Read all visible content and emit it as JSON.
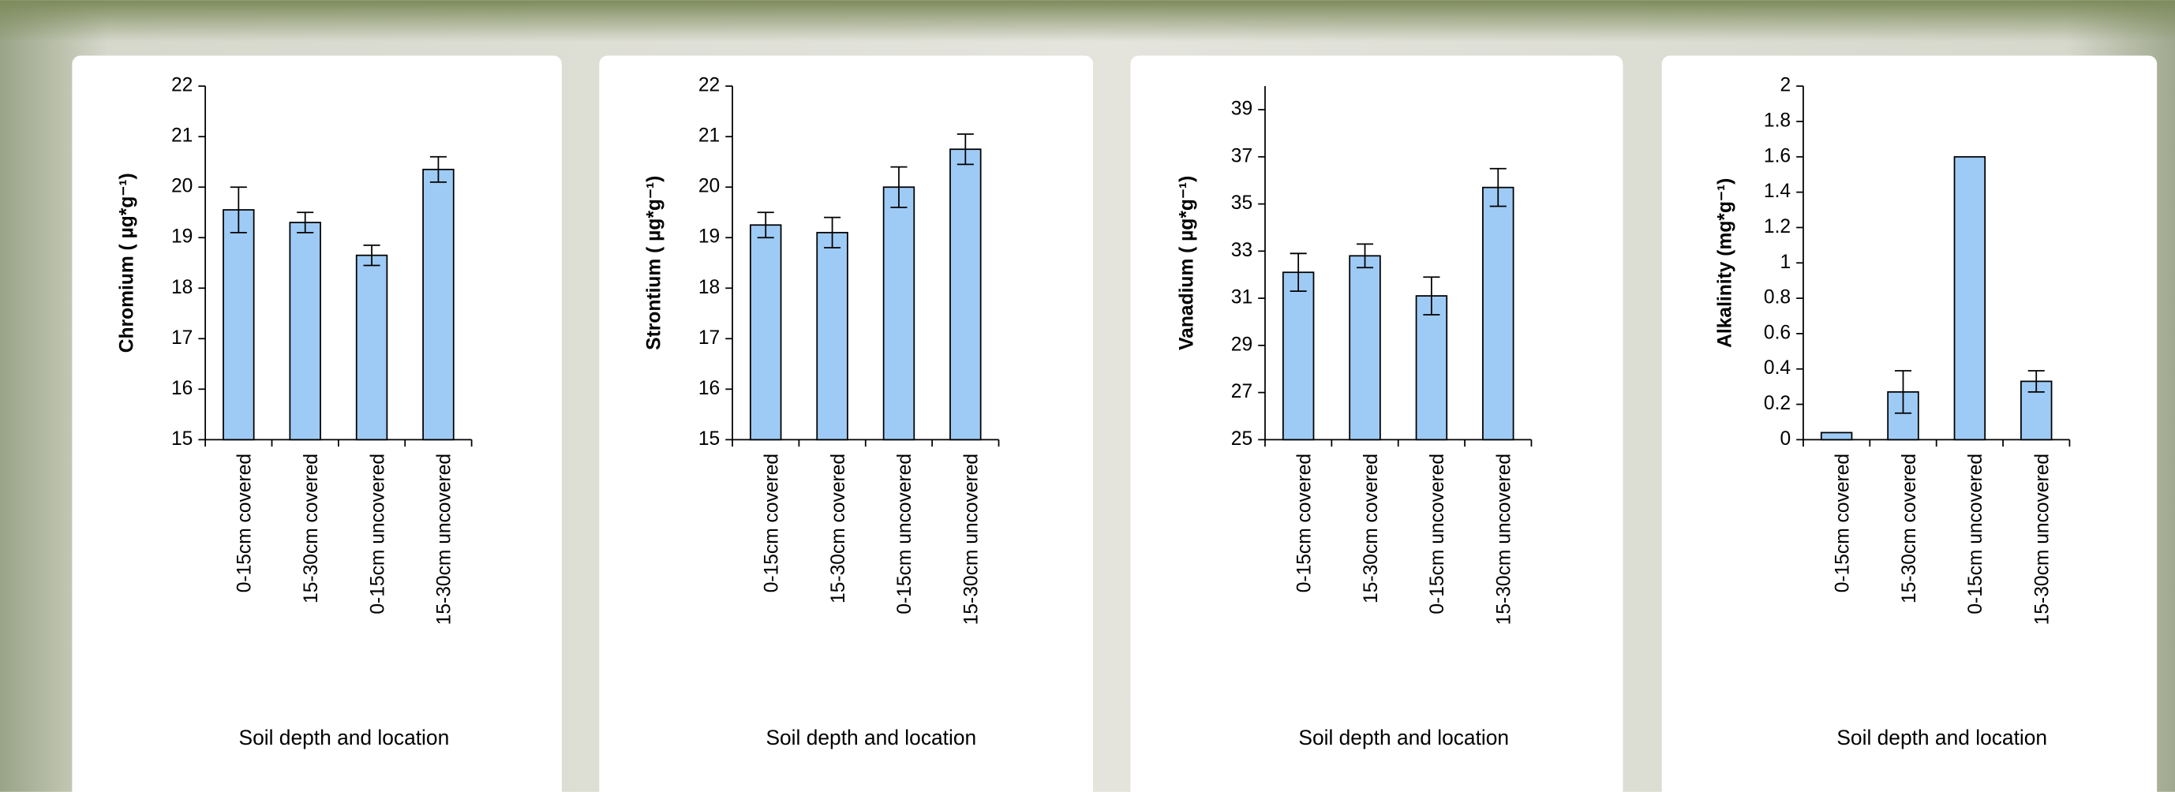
{
  "chart_data": [
    {
      "type": "bar",
      "ylabel": "Chromium ( µg*g⁻¹)",
      "xlabel": "Soil depth and location",
      "categories": [
        "0-15cm covered",
        "15-30cm covered",
        "0-15cm uncovered",
        "15-30cm uncovered"
      ],
      "values": [
        19.55,
        19.3,
        18.65,
        20.35
      ],
      "errors": [
        0.45,
        0.2,
        0.2,
        0.25
      ],
      "color": "#9ecbf5",
      "ylim": [
        15,
        22
      ],
      "yticks": [
        15,
        16,
        17,
        18,
        19,
        20,
        21,
        22
      ]
    },
    {
      "type": "bar",
      "ylabel": "Strontium ( µg*g⁻¹)",
      "xlabel": "Soil depth and location",
      "categories": [
        "0-15cm covered",
        "15-30cm covered",
        "0-15cm uncovered",
        "15-30cm uncovered"
      ],
      "values": [
        19.25,
        19.1,
        20.0,
        20.75
      ],
      "errors": [
        0.25,
        0.3,
        0.4,
        0.3
      ],
      "color": "#9ecbf5",
      "ylim": [
        15,
        22
      ],
      "yticks": [
        15,
        16,
        17,
        18,
        19,
        20,
        21,
        22
      ]
    },
    {
      "type": "bar",
      "ylabel": "Vanadium ( µg*g⁻¹)",
      "xlabel": "Soil depth and location",
      "categories": [
        "0-15cm covered",
        "15-30cm covered",
        "0-15cm uncovered",
        "15-30cm uncovered"
      ],
      "values": [
        32.1,
        32.8,
        31.1,
        35.7
      ],
      "errors": [
        0.8,
        0.5,
        0.8,
        0.8
      ],
      "color": "#9ecbf5",
      "ylim": [
        25,
        40
      ],
      "yticks": [
        25,
        27,
        29,
        31,
        33,
        35,
        37,
        39
      ]
    },
    {
      "type": "bar",
      "ylabel": "Alkalinity (mg*g⁻¹)",
      "xlabel": "Soil depth and location",
      "categories": [
        "0-15cm covered",
        "15-30cm covered",
        "0-15cm uncovered",
        "15-30cm uncovered"
      ],
      "values": [
        0.04,
        0.27,
        1.6,
        0.33
      ],
      "errors": [
        null,
        0.12,
        null,
        0.06
      ],
      "color": "#9ecbf5",
      "ylim": [
        0,
        2
      ],
      "yticks": [
        0,
        0.2,
        0.4,
        0.6,
        0.8,
        1,
        1.2,
        1.4,
        1.6,
        1.8,
        2
      ]
    }
  ]
}
